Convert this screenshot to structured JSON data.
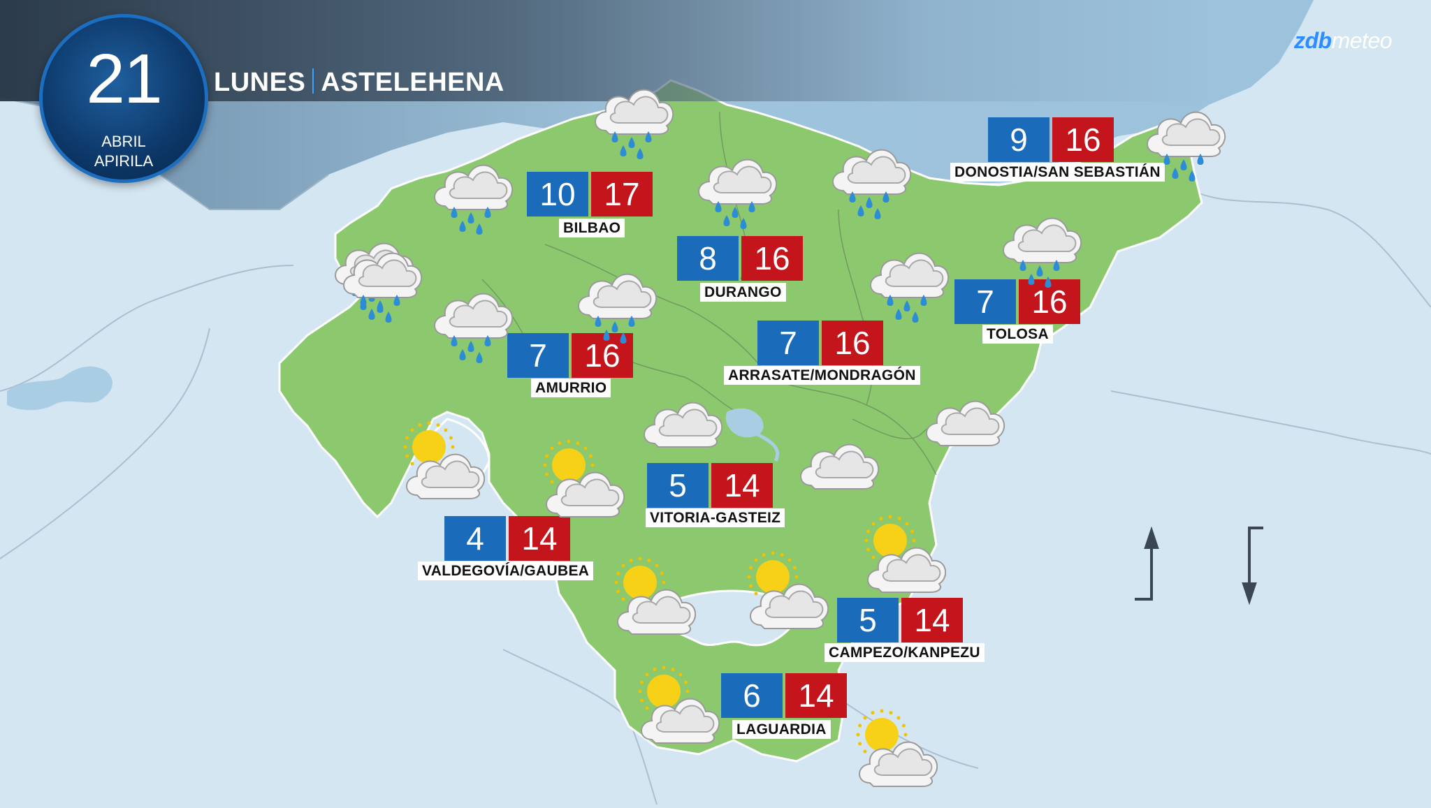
{
  "date": {
    "day": "21",
    "month_es": "ABRIL",
    "month_eu": "APIRILA"
  },
  "title": {
    "day_es": "LUNES",
    "day_eu": "ASTELEHENA"
  },
  "brand": {
    "part1": "zdb",
    "part2": "meteo"
  },
  "colors": {
    "land": "#8cc86e",
    "sea": "#a9cde3",
    "surround": "#d4e6f2",
    "min": "#1a6cbb",
    "max": "#c4141c"
  },
  "cities": [
    {
      "name": "BILBAO",
      "min": "10",
      "max": "17"
    },
    {
      "name": "DURANGO",
      "min": "8",
      "max": "16"
    },
    {
      "name": "DONOSTIA/SAN SEBASTIÁN",
      "min": "9",
      "max": "16"
    },
    {
      "name": "TOLOSA",
      "min": "7",
      "max": "16"
    },
    {
      "name": "AMURRIO",
      "min": "7",
      "max": "16"
    },
    {
      "name": "ARRASATE/MONDRAGÓN",
      "min": "7",
      "max": "16"
    },
    {
      "name": "VITORIA-GASTEIZ",
      "min": "5",
      "max": "14"
    },
    {
      "name": "VALDEGOVÍA/GAUBEA",
      "min": "4",
      "max": "14"
    },
    {
      "name": "CAMPEZO/KANPEZU",
      "min": "5",
      "max": "14"
    },
    {
      "name": "LAGUARDIA",
      "min": "6",
      "max": "14"
    }
  ],
  "icons": [
    "rain-icon",
    "rain-icon",
    "rain-icon",
    "rain-icon",
    "rain-icon",
    "rain-icon",
    "rain-icon",
    "rain-icon",
    "rain-icon",
    "rain-icon",
    "rain-icon",
    "cloud-icon",
    "cloud-icon",
    "cloud-icon",
    "partly-cloudy-icon",
    "partly-cloudy-icon",
    "partly-cloudy-icon",
    "partly-cloudy-icon",
    "partly-cloudy-icon",
    "partly-cloudy-icon",
    "partly-cloudy-icon"
  ],
  "legend": {
    "rise_icon": "arrow-up-icon",
    "fall_icon": "arrow-down-icon"
  }
}
